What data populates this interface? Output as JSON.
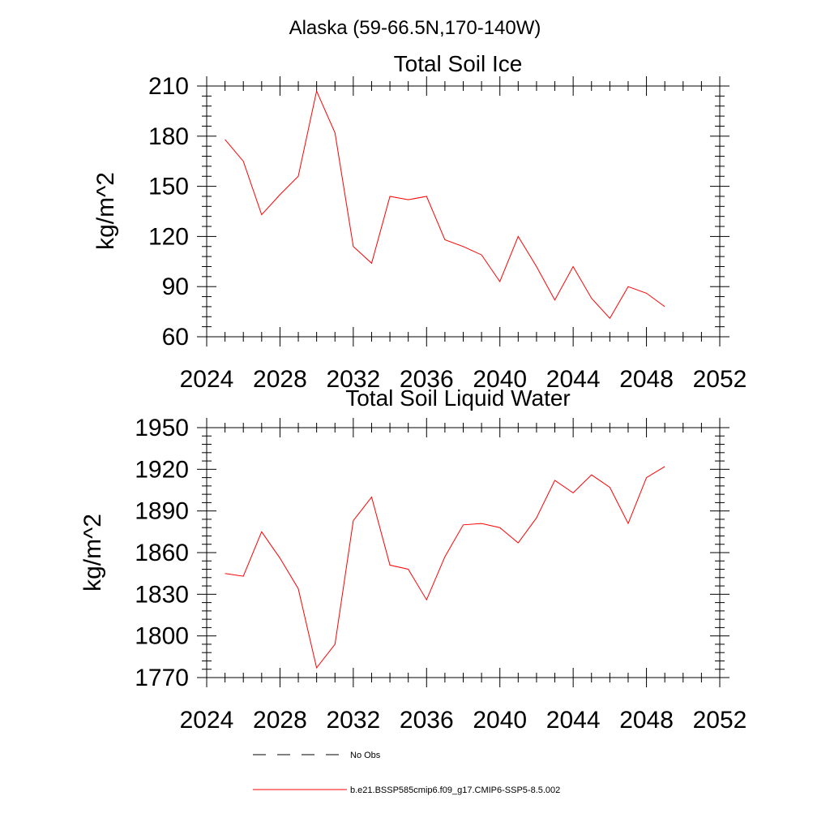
{
  "page": {
    "title": "Alaska (59-66.5N,170-140W)"
  },
  "chart_data": [
    {
      "type": "line",
      "title": "Total Soil Ice",
      "xlabel": "",
      "ylabel": "kg/m^2",
      "xlim": [
        2024,
        2052
      ],
      "ylim": [
        60,
        210
      ],
      "x_ticks": [
        2024,
        2028,
        2032,
        2036,
        2040,
        2044,
        2048,
        2052
      ],
      "y_ticks": [
        60,
        90,
        120,
        150,
        180,
        210
      ],
      "x": [
        2025,
        2026,
        2027,
        2028,
        2029,
        2030,
        2031,
        2032,
        2033,
        2034,
        2035,
        2036,
        2037,
        2038,
        2039,
        2040,
        2041,
        2042,
        2043,
        2044,
        2045,
        2046,
        2047,
        2048,
        2049
      ],
      "series": [
        {
          "name": "b.e21.BSSP585cmip6.f09_g17.CMIP6-SSP5-8.5.002",
          "color": "#ff0000",
          "values": [
            178,
            165,
            133,
            145,
            156,
            207,
            182,
            114,
            104,
            144,
            142,
            144,
            118,
            114,
            109,
            93,
            120,
            102,
            82,
            102,
            83,
            71,
            90,
            86,
            78
          ]
        }
      ],
      "grid": false
    },
    {
      "type": "line",
      "title": "Total Soil Liquid Water",
      "xlabel": "",
      "ylabel": "kg/m^2",
      "xlim": [
        2024,
        2052
      ],
      "ylim": [
        1770,
        1950
      ],
      "x_ticks": [
        2024,
        2028,
        2032,
        2036,
        2040,
        2044,
        2048,
        2052
      ],
      "y_ticks": [
        1770,
        1800,
        1830,
        1860,
        1890,
        1920,
        1950
      ],
      "x": [
        2025,
        2026,
        2027,
        2028,
        2029,
        2030,
        2031,
        2032,
        2033,
        2034,
        2035,
        2036,
        2037,
        2038,
        2039,
        2040,
        2041,
        2042,
        2043,
        2044,
        2045,
        2046,
        2047,
        2048,
        2049
      ],
      "series": [
        {
          "name": "b.e21.BSSP585cmip6.f09_g17.CMIP6-SSP5-8.5.002",
          "color": "#ff0000",
          "values": [
            1845,
            1843,
            1875,
            1856,
            1834,
            1777,
            1794,
            1883,
            1900,
            1851,
            1848,
            1826,
            1857,
            1880,
            1881,
            1878,
            1867,
            1885,
            1912,
            1903,
            1916,
            1907,
            1881,
            1914,
            1922
          ]
        }
      ],
      "grid": false
    }
  ],
  "legend": {
    "placement": "bottom",
    "entries": [
      {
        "label": "No Obs",
        "style": "dashed",
        "color": "#000000"
      },
      {
        "label": "b.e21.BSSP585cmip6.f09_g17.CMIP6-SSP5-8.5.002",
        "style": "solid",
        "color": "#ff0000"
      }
    ]
  }
}
